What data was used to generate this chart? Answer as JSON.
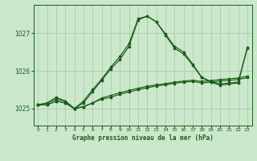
{
  "background_color": "#cce8cc",
  "grid_color": "#aaccaa",
  "line_color": "#1a5c1a",
  "title": "Graphe pression niveau de la mer (hPa)",
  "xlim": [
    -0.5,
    23.5
  ],
  "ylim": [
    1024.55,
    1027.75
  ],
  "yticks": [
    1025,
    1026,
    1027
  ],
  "xticks": [
    0,
    1,
    2,
    3,
    4,
    5,
    6,
    7,
    8,
    9,
    10,
    11,
    12,
    13,
    14,
    15,
    16,
    17,
    18,
    19,
    20,
    21,
    22,
    23
  ],
  "series": [
    [
      1025.1,
      1025.1,
      1025.2,
      1025.15,
      1025.0,
      1025.05,
      1025.15,
      1025.25,
      1025.3,
      1025.38,
      1025.44,
      1025.5,
      1025.55,
      1025.6,
      1025.63,
      1025.67,
      1025.7,
      1025.72,
      1025.68,
      1025.7,
      1025.73,
      1025.75,
      1025.77,
      1025.82
    ],
    [
      1025.1,
      1025.1,
      1025.2,
      1025.15,
      1025.0,
      1025.05,
      1025.15,
      1025.28,
      1025.35,
      1025.42,
      1025.48,
      1025.54,
      1025.59,
      1025.63,
      1025.66,
      1025.7,
      1025.73,
      1025.75,
      1025.72,
      1025.74,
      1025.77,
      1025.79,
      1025.81,
      1025.86
    ],
    [
      1025.1,
      1025.15,
      1025.3,
      1025.2,
      1025.0,
      1025.15,
      1025.45,
      1025.75,
      1026.05,
      1026.3,
      1026.65,
      1027.35,
      1027.45,
      1027.3,
      1026.95,
      1026.6,
      1026.45,
      1026.15,
      1025.82,
      1025.7,
      1025.62,
      1025.65,
      1025.68,
      1026.6
    ],
    [
      1025.1,
      1025.15,
      1025.25,
      1025.2,
      1025.0,
      1025.2,
      1025.5,
      1025.78,
      1026.1,
      1026.38,
      1026.72,
      1027.38,
      1027.45,
      1027.3,
      1026.98,
      1026.65,
      1026.5,
      1026.18,
      1025.83,
      1025.72,
      1025.65,
      1025.68,
      1025.7,
      1026.62
    ]
  ]
}
